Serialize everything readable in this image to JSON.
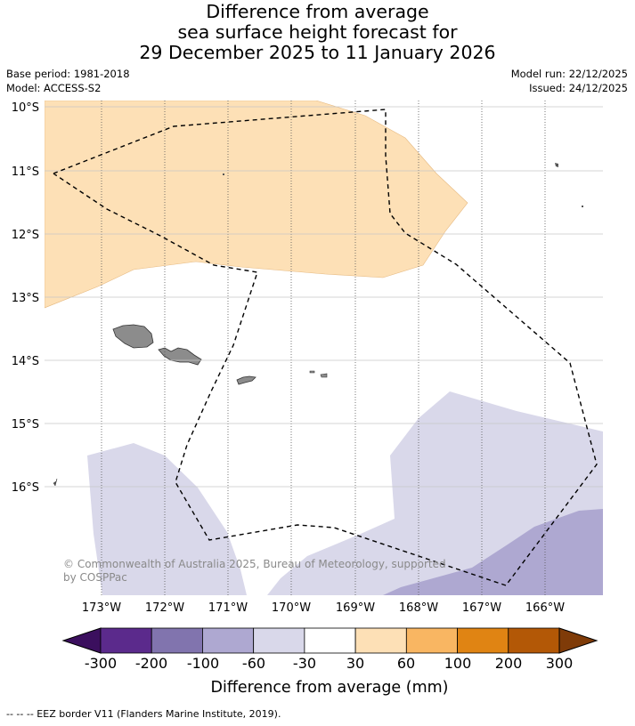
{
  "title": {
    "line1": "Difference from average",
    "line2": "sea surface height forecast for",
    "line3": "29 December 2025 to 11 January 2026"
  },
  "meta": {
    "base_period": "Base period: 1981-2018",
    "model": "Model: ACCESS-S2",
    "model_run": "Model run: 22/12/2025",
    "issued": "Issued: 24/12/2025"
  },
  "map": {
    "lat_labels": [
      "10°S",
      "11°S",
      "12°S",
      "13°S",
      "14°S",
      "15°S",
      "16°S"
    ],
    "lon_labels": [
      "173°W",
      "172°W",
      "171°W",
      "170°W",
      "169°W",
      "168°W",
      "167°W",
      "166°W"
    ],
    "copyright_line1": "© Commonwealth of Australia 2025, Bureau of Meteorology, supported",
    "copyright_line2": "by COSPPac",
    "land_color": "#8c8c8c"
  },
  "colorbar": {
    "ticks": [
      "-300",
      "-200",
      "-100",
      "-60",
      "-30",
      "30",
      "60",
      "100",
      "200",
      "300"
    ],
    "colors": [
      "#3b0f5e",
      "#5b2a8c",
      "#8174ae",
      "#aea8d1",
      "#d9d8ea",
      "#ffffff",
      "#fde0b6",
      "#f9b662",
      "#e08413",
      "#b35806",
      "#7f3b08"
    ],
    "label": "Difference from average (mm)"
  },
  "footer": {
    "eez_note": "--  --  -- EEZ border V11 (Flanders Marine Institute, 2019)."
  }
}
